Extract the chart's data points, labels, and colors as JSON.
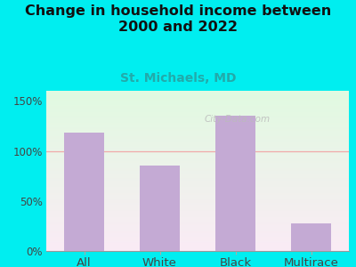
{
  "categories": [
    "All",
    "White",
    "Black",
    "Multirace"
  ],
  "values": [
    118,
    85,
    135,
    28
  ],
  "bar_color": "#c4aad4",
  "title_line1": "Change in household income between",
  "title_line2": "2000 and 2022",
  "subtitle": "St. Michaels, MD",
  "title_fontsize": 11.5,
  "subtitle_fontsize": 10,
  "subtitle_color": "#22aaaa",
  "background_color": "#00eef0",
  "ylabel_ticks": [
    0,
    50,
    100,
    150
  ],
  "ylim": [
    0,
    160
  ],
  "watermark": "City-Data.com",
  "grid_color": "#f0aaaa",
  "tick_fontsize": 8.5,
  "xlabel_fontsize": 9.5,
  "bar_width": 0.52
}
